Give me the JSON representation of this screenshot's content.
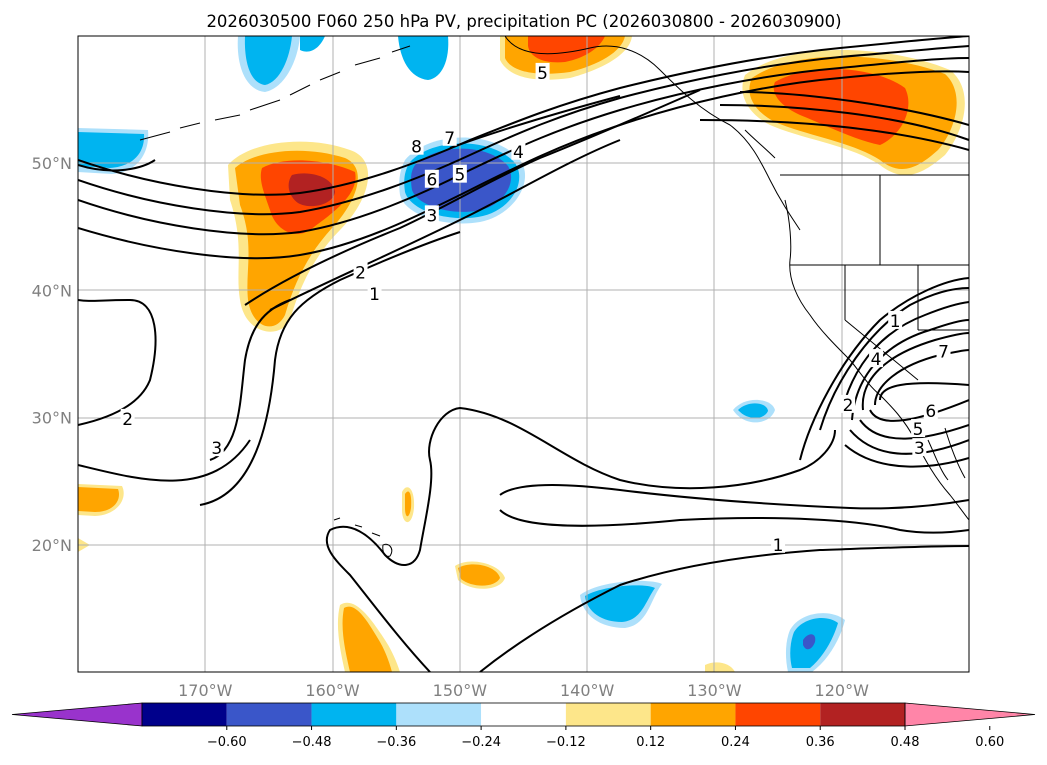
{
  "title": "2026030500 F060 250 hPa PV, precipitation PC (2026030800 - 2026030900)",
  "map": {
    "lon_range": [
      -180,
      -110
    ],
    "lat_range": [
      10,
      60
    ],
    "grid": true,
    "lat_ticks": [
      {
        "value": 20,
        "label": "20°N"
      },
      {
        "value": 30,
        "label": "30°N"
      },
      {
        "value": 40,
        "label": "40°N"
      },
      {
        "value": 50,
        "label": "50°N"
      }
    ],
    "lon_ticks": [
      {
        "value": -170,
        "label": "170°W"
      },
      {
        "value": -160,
        "label": "160°W"
      },
      {
        "value": -150,
        "label": "150°W"
      },
      {
        "value": -140,
        "label": "140°W"
      },
      {
        "value": -130,
        "label": "130°W"
      },
      {
        "value": -120,
        "label": "120°W"
      }
    ],
    "contour_labels": [
      {
        "text": "5",
        "lon": -143.5,
        "lat": 57.1
      },
      {
        "text": "8",
        "lon": -153.4,
        "lat": 51.3
      },
      {
        "text": "7",
        "lon": -150.8,
        "lat": 52.0
      },
      {
        "text": "4",
        "lon": -145.4,
        "lat": 50.9
      },
      {
        "text": "6",
        "lon": -152.2,
        "lat": 48.7
      },
      {
        "text": "5",
        "lon": -150.0,
        "lat": 49.1
      },
      {
        "text": "3",
        "lon": -152.2,
        "lat": 45.9
      },
      {
        "text": "2",
        "lon": -157.8,
        "lat": 41.4
      },
      {
        "text": "1",
        "lon": -156.7,
        "lat": 39.7
      },
      {
        "text": "2",
        "lon": -176.1,
        "lat": 29.9
      },
      {
        "text": "3",
        "lon": -169.1,
        "lat": 27.6
      },
      {
        "text": "1",
        "lon": -125.0,
        "lat": 20.0
      },
      {
        "text": "1",
        "lon": -115.8,
        "lat": 37.6
      },
      {
        "text": "4",
        "lon": -117.3,
        "lat": 34.6
      },
      {
        "text": "7",
        "lon": -112.0,
        "lat": 35.2
      },
      {
        "text": "2",
        "lon": -119.5,
        "lat": 31.0
      },
      {
        "text": "6",
        "lon": -113.0,
        "lat": 30.5
      },
      {
        "text": "5",
        "lon": -114.0,
        "lat": 29.1
      },
      {
        "text": "3",
        "lon": -113.9,
        "lat": 27.6
      }
    ]
  },
  "colorbar": {
    "colors": [
      "#9933cc",
      "#00008b",
      "#3a56c9",
      "#00b4f0",
      "#ade0fb",
      "#ffffff",
      "#fde68a",
      "#ffa500",
      "#ff4500",
      "#b22222",
      "#ff85a8"
    ],
    "tick_labels": [
      "−0.60",
      "−0.48",
      "−0.36",
      "−0.24",
      "−0.12",
      "0.12",
      "0.24",
      "0.36",
      "0.48",
      "0.60"
    ]
  }
}
